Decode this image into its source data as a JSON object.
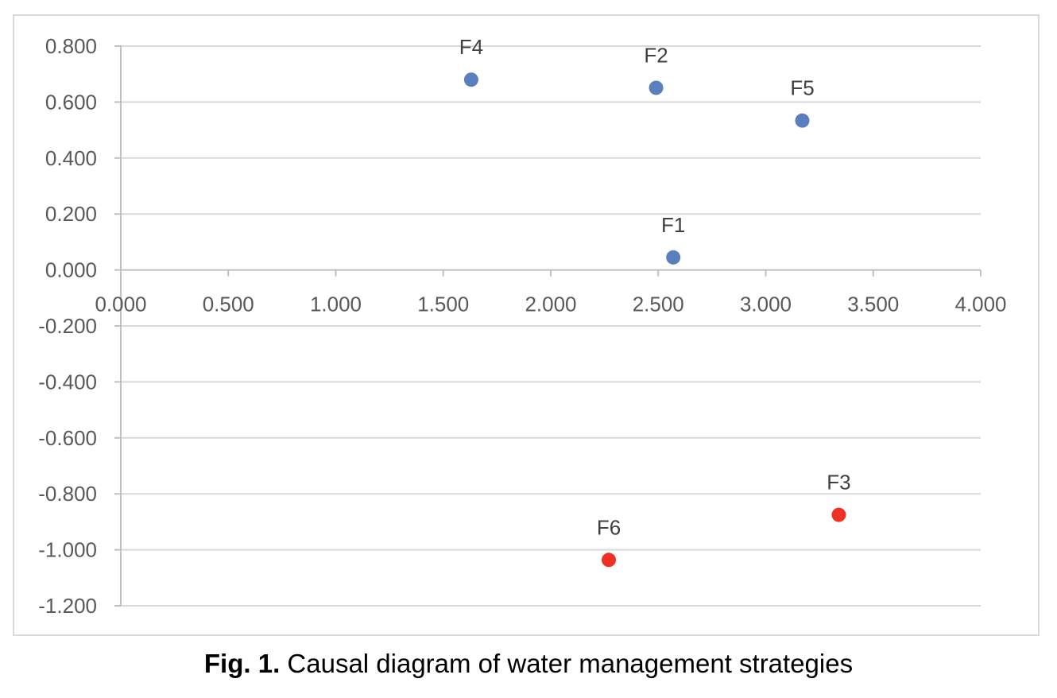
{
  "chart_data": {
    "type": "scatter",
    "title": "",
    "xlabel": "",
    "ylabel": "",
    "xlim": [
      0,
      4
    ],
    "ylim": [
      -1.2,
      0.8
    ],
    "x_ticks": [
      "0.000",
      "0.500",
      "1.000",
      "1.500",
      "2.000",
      "2.500",
      "3.000",
      "3.500",
      "4.000"
    ],
    "y_ticks": [
      "0.800",
      "0.600",
      "0.400",
      "0.200",
      "0.000",
      "-0.200",
      "-0.400",
      "-0.600",
      "-0.800",
      "-1.000",
      "-1.200"
    ],
    "grid": "horizontal",
    "legend": "none",
    "points": [
      {
        "label": "F4",
        "x": 1.63,
        "y": 0.68,
        "color": "#5b7fbd"
      },
      {
        "label": "F2",
        "x": 2.49,
        "y": 0.651,
        "color": "#5b7fbd"
      },
      {
        "label": "F5",
        "x": 3.17,
        "y": 0.534,
        "color": "#5b7fbd"
      },
      {
        "label": "F1",
        "x": 2.57,
        "y": 0.045,
        "color": "#5b7fbd"
      },
      {
        "label": "F3",
        "x": 3.34,
        "y": -0.875,
        "color": "#ee3124"
      },
      {
        "label": "F6",
        "x": 2.27,
        "y": -1.036,
        "color": "#ee3124"
      }
    ]
  },
  "caption": {
    "number": "Fig. 1.",
    "text": " Causal diagram of water management strategies"
  },
  "colors": {
    "cause_group": "#5b7fbd",
    "effect_group": "#ee3124",
    "gridline": "#d9d9d9",
    "axis": "#bfbfbf"
  }
}
